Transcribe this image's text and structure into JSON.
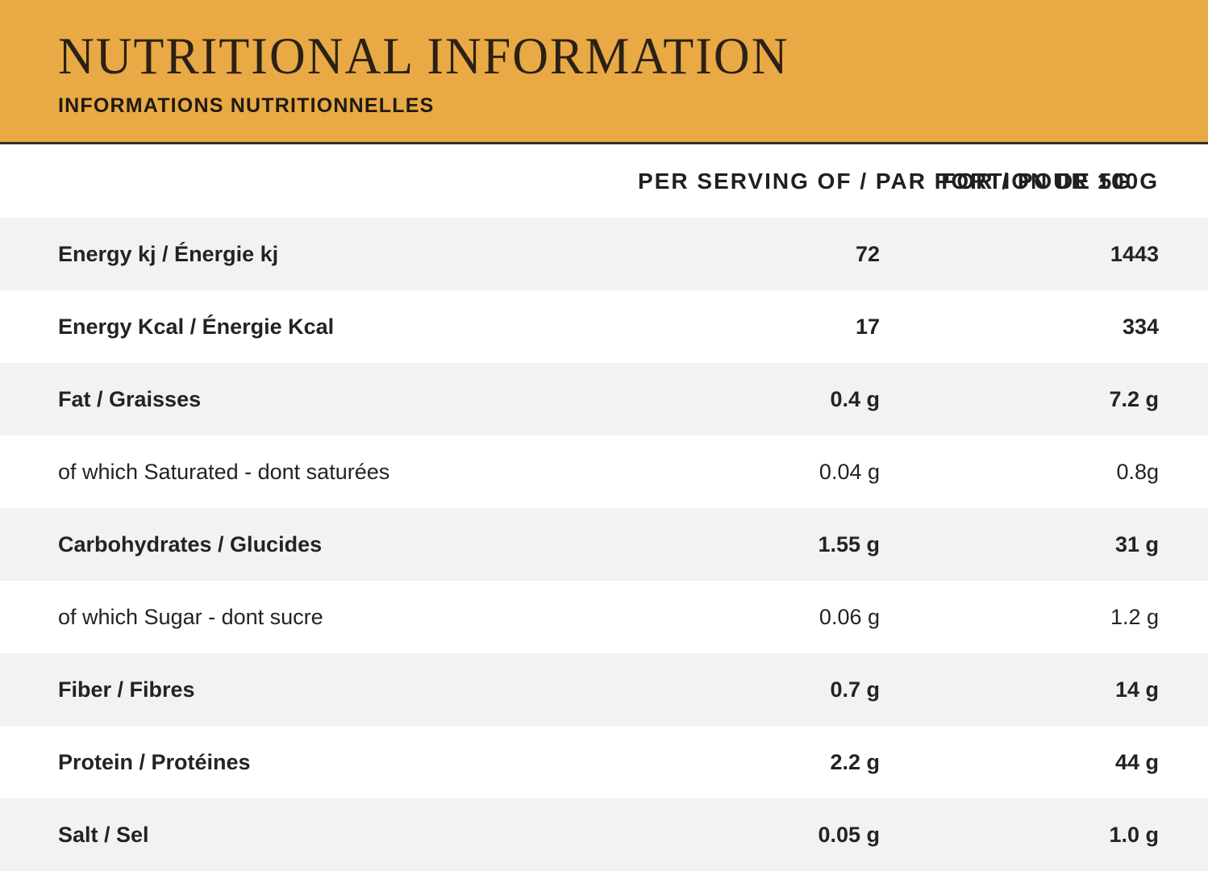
{
  "header": {
    "title": "NUTRITIONAL INFORMATION",
    "subtitle": "INFORMATIONS NUTRITIONNELLES"
  },
  "colors": {
    "band_background": "#E9A945",
    "band_border": "#33302A",
    "row_stripe": "#F2F2F2",
    "text": "#232323",
    "title_text": "#2B2115"
  },
  "table": {
    "columns": {
      "per_serving": "PER SERVING OF / PAR PORTION DE 5G",
      "per_100g": "FOR / POUR 100G"
    },
    "rows": [
      {
        "label": "Energy kj / Énergie kj",
        "per_serving": "72",
        "per_100g": "1443",
        "emphasis": "bold"
      },
      {
        "label": "Energy Kcal / Énergie Kcal",
        "per_serving": "17",
        "per_100g": "334",
        "emphasis": "bold"
      },
      {
        "label": "Fat / Graisses",
        "per_serving": "0.4 g",
        "per_100g": "7.2 g",
        "emphasis": "bold"
      },
      {
        "label": "of which Saturated - dont saturées",
        "per_serving": "0.04 g",
        "per_100g": "0.8g",
        "emphasis": "regular"
      },
      {
        "label": "Carbohydrates / Glucides",
        "per_serving": "1.55 g",
        "per_100g": "31 g",
        "emphasis": "bold"
      },
      {
        "label": "of which Sugar - dont sucre",
        "per_serving": "0.06 g",
        "per_100g": "1.2 g",
        "emphasis": "regular"
      },
      {
        "label": "Fiber / Fibres",
        "per_serving": "0.7 g",
        "per_100g": "14 g",
        "emphasis": "bold"
      },
      {
        "label": "Protein / Protéines",
        "per_serving": "2.2 g",
        "per_100g": "44 g",
        "emphasis": "bold"
      },
      {
        "label": "Salt / Sel",
        "per_serving": "0.05 g",
        "per_100g": "1.0 g",
        "emphasis": "bold"
      }
    ]
  }
}
